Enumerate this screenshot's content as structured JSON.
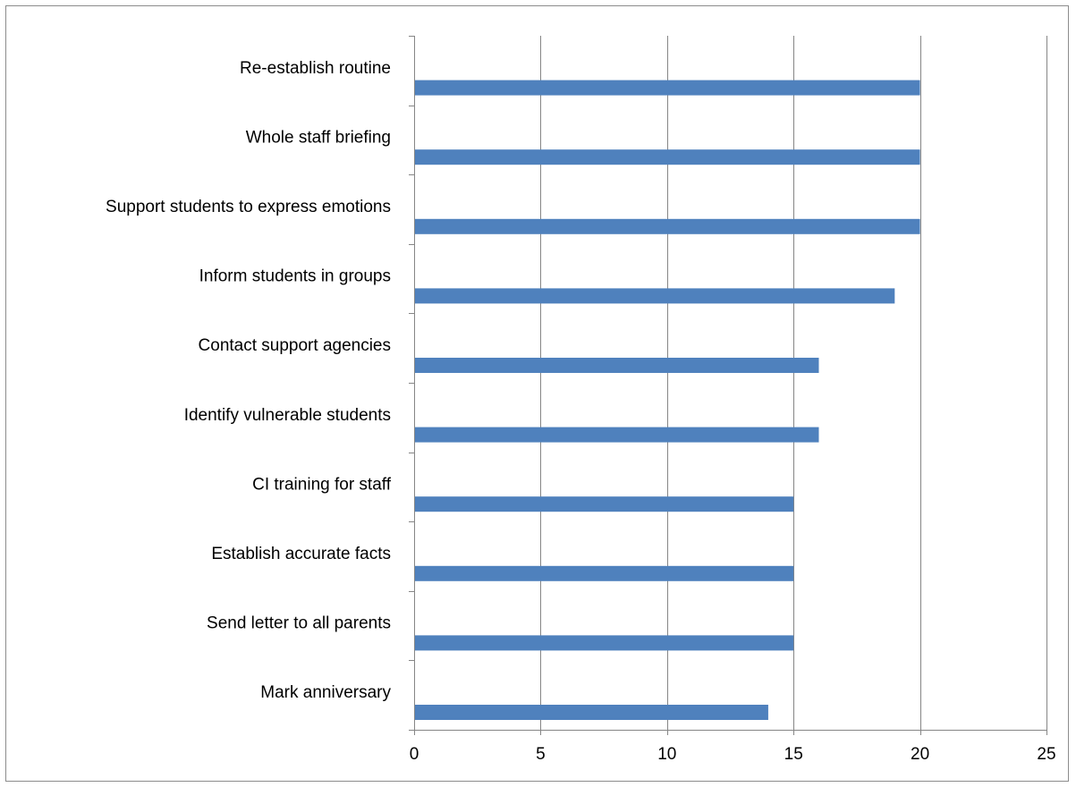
{
  "chart_data": {
    "type": "bar",
    "orientation": "horizontal",
    "title": "",
    "xlabel": "",
    "ylabel": "",
    "categories": [
      "Re-establish routine",
      "Whole staff briefing",
      "Support students to express emotions",
      "Inform students in groups",
      "Contact support agencies",
      "Identify vulnerable students",
      "CI training for staff",
      "Establish accurate facts",
      "Send letter to all parents",
      "Mark anniversary"
    ],
    "values": [
      20,
      20,
      20,
      19,
      16,
      16,
      15,
      15,
      15,
      14
    ],
    "xlim": [
      0,
      25
    ],
    "xticks": [
      0,
      5,
      10,
      15,
      20,
      25
    ],
    "grid": "vertical",
    "legend": "none",
    "colors": {
      "bar": "#4f81bd",
      "grid": "#868686",
      "axis": "#868686"
    }
  }
}
